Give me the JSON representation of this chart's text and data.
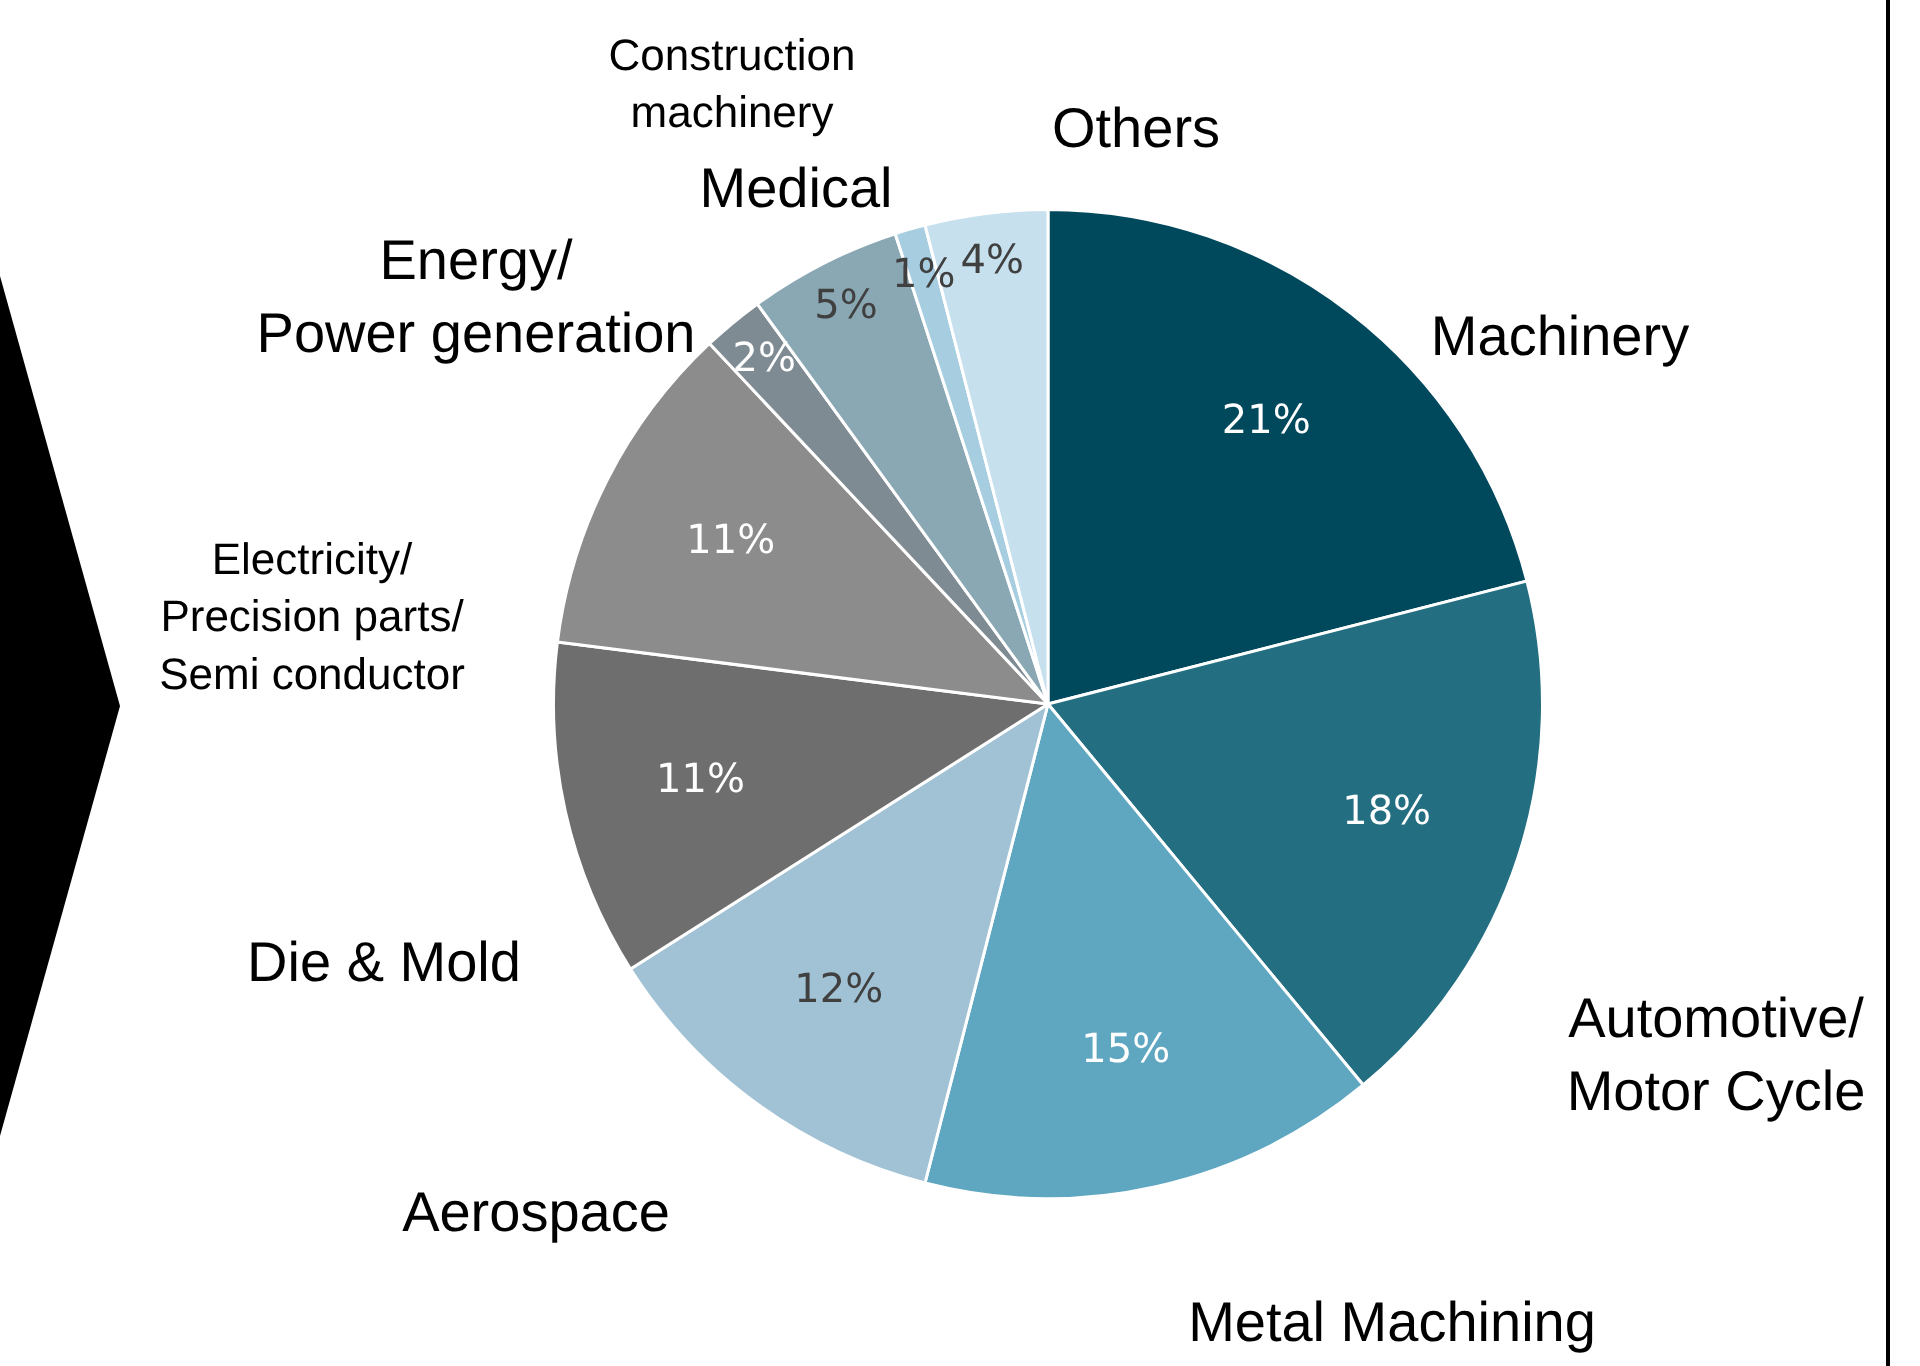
{
  "chart_data": {
    "type": "pie",
    "categories": [
      "Machinery",
      "Automotive/ Motor Cycle",
      "Metal Machining",
      "Aerospace",
      "Die & Mold",
      "Electricity/ Precision parts/ Semi conductor",
      "Energy/ Power generation",
      "Medical",
      "Construction machinery",
      "Others"
    ],
    "values": [
      21,
      18,
      15,
      12,
      11,
      11,
      2,
      5,
      1,
      4
    ],
    "value_labels": [
      "21%",
      "18%",
      "15%",
      "12%",
      "11%",
      "11%",
      "2%",
      "5%",
      "1%",
      "4%"
    ],
    "colors": [
      "#00495d",
      "#236e80",
      "#5fa7c0",
      "#a1c2d4",
      "#6e6e6e",
      "#8c8c8c",
      "#7f8b93",
      "#8aa8b4",
      "#a6cde0",
      "#c6e0ee"
    ],
    "legend": false
  }
}
